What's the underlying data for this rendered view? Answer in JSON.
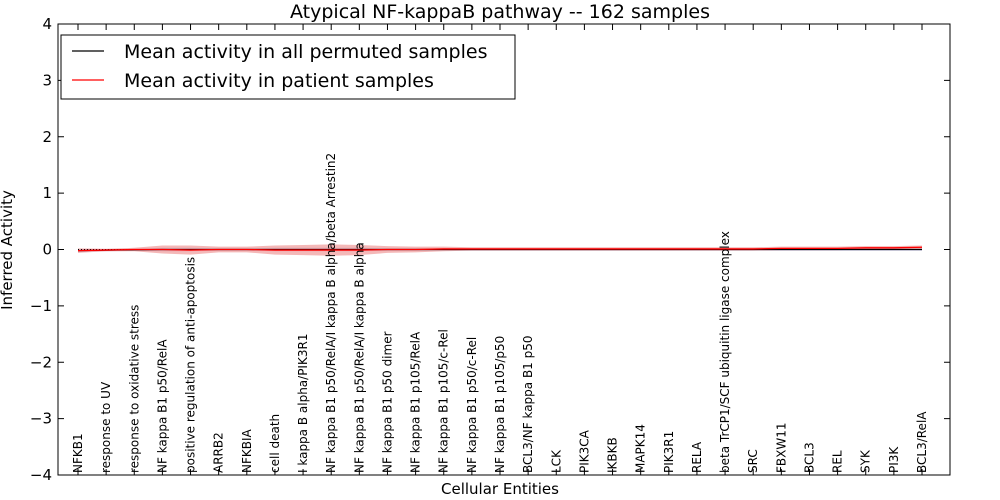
{
  "chart_data": {
    "type": "line",
    "title": "Atypical NF-kappaB pathway -- 162 samples",
    "xlabel": "Cellular Entities",
    "ylabel": "Inferred Activity",
    "ylim": [
      -4,
      4
    ],
    "yticks": [
      "−4",
      "−3",
      "−2",
      "−1",
      "0",
      "1",
      "2",
      "3",
      "4"
    ],
    "legend_position": "top-left",
    "categories": [
      "NFKB1",
      "response to UV",
      "response to oxidative stress",
      "NF kappa B1 p50/RelA",
      "positive regulation of anti-apoptosis",
      "ARRB2",
      "NFKBIA",
      "cell death",
      "I kappa B alpha/PIK3R1",
      "NF kappa B1 p50/RelA/I kappa B alpha/beta Arrestin2",
      "NF kappa B1 p50/RelA/I kappa B alpha",
      "NF kappa B1 p50 dimer",
      "NF kappa B1 p105/RelA",
      "NF kappa B1 p105/c-Rel",
      "NF kappa B1 p50/c-Rel",
      "NF kappa B1 p105/p50",
      "BCL3/NF kappa B1 p50",
      "LCK",
      "PIK3CA",
      "IKBKB",
      "MAPK14",
      "PIK3R1",
      "RELA",
      "beta TrCP1/SCF ubiquitin ligase complex",
      "SRC",
      "FBXW11",
      "BCL3",
      "REL",
      "SYK",
      "PI3K",
      "BCL3/RelA"
    ],
    "series": [
      {
        "name": "Mean activity in all permuted samples",
        "color": "#000000",
        "values": [
          -0.02,
          -0.01,
          -0.005,
          0.0,
          0.0,
          0.0,
          0.0,
          0.0,
          0.0,
          0.0,
          0.0,
          0.0,
          0.0,
          0.0,
          0.0,
          0.0,
          0.0,
          0.0,
          0.0,
          0.0,
          0.0,
          0.0,
          0.0,
          0.0,
          0.0,
          0.0,
          0.0,
          0.0,
          0.0,
          0.0,
          0.0
        ],
        "band": [
          0.03,
          0.02,
          0.02,
          0.03,
          0.03,
          0.02,
          0.02,
          0.03,
          0.03,
          0.03,
          0.03,
          0.02,
          0.02,
          0.02,
          0.02,
          0.02,
          0.02,
          0.02,
          0.02,
          0.02,
          0.02,
          0.02,
          0.02,
          0.02,
          0.02,
          0.02,
          0.02,
          0.02,
          0.02,
          0.02,
          0.02
        ]
      },
      {
        "name": "Mean activity in patient samples",
        "color": "#ff0000",
        "values": [
          -0.02,
          -0.01,
          0.0,
          0.0,
          -0.01,
          0.0,
          0.0,
          -0.01,
          -0.01,
          -0.01,
          -0.01,
          0.0,
          0.0,
          0.01,
          0.01,
          0.01,
          0.01,
          0.01,
          0.01,
          0.01,
          0.01,
          0.01,
          0.01,
          0.01,
          0.01,
          0.02,
          0.02,
          0.02,
          0.03,
          0.03,
          0.04
        ],
        "band": [
          0.04,
          0.02,
          0.03,
          0.07,
          0.08,
          0.05,
          0.05,
          0.08,
          0.09,
          0.1,
          0.09,
          0.06,
          0.05,
          0.04,
          0.03,
          0.03,
          0.03,
          0.03,
          0.03,
          0.03,
          0.03,
          0.03,
          0.03,
          0.03,
          0.03,
          0.03,
          0.03,
          0.03,
          0.03,
          0.03,
          0.03
        ]
      }
    ],
    "colors": {
      "axis": "#000000",
      "permuted_band": "#b0b0e0",
      "patient_band": "#f0a0a0",
      "zero_line": "#000000"
    }
  }
}
